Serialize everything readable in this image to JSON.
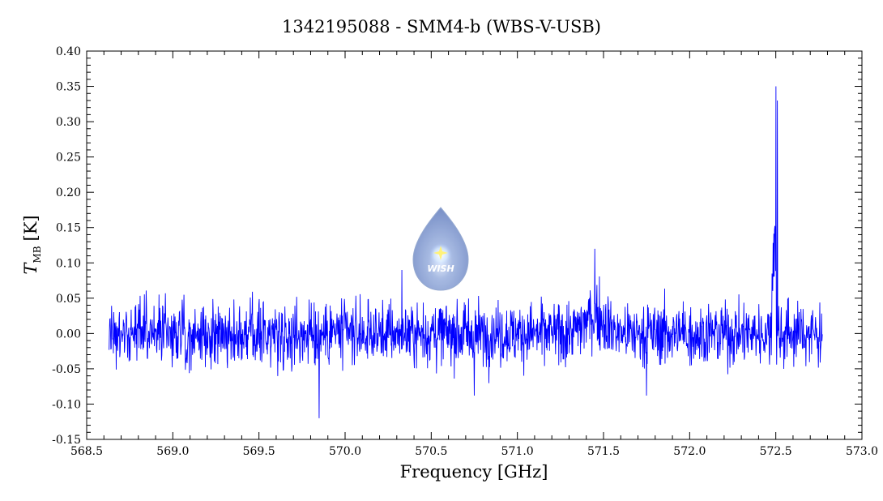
{
  "chart_data": {
    "type": "line",
    "title": "1342195088 - SMM4-b (WBS-V-USB)",
    "xlabel": "Frequency [GHz]",
    "ylabel": {
      "symbol": "T",
      "subscript": "MB",
      "unit": "[K]"
    },
    "xlim": [
      568.5,
      573.0
    ],
    "ylim": [
      -0.15,
      0.4
    ],
    "x_ticks": [
      "568.5",
      "569.0",
      "569.5",
      "570.0",
      "570.5",
      "571.0",
      "571.5",
      "572.0",
      "572.5",
      "573.0"
    ],
    "y_ticks": [
      "-0.15",
      "-0.10",
      "-0.05",
      "0.00",
      "0.05",
      "0.10",
      "0.15",
      "0.20",
      "0.25",
      "0.30",
      "0.35",
      "0.40"
    ],
    "grid": false,
    "series": [
      {
        "color": "#0000ff",
        "x_range": [
          568.63,
          572.77
        ],
        "noise_rms": 0.022,
        "features": [
          {
            "x": 569.85,
            "y": -0.12
          },
          {
            "x": 570.33,
            "y": 0.09
          },
          {
            "x": 570.75,
            "y": -0.088
          },
          {
            "x": 571.45,
            "y": 0.12
          },
          {
            "x": 571.75,
            "y": -0.088
          },
          {
            "x": 572.5,
            "y": 0.35
          },
          {
            "x": 572.51,
            "y": 0.33
          }
        ]
      }
    ],
    "logo": {
      "text": "WISH"
    }
  }
}
